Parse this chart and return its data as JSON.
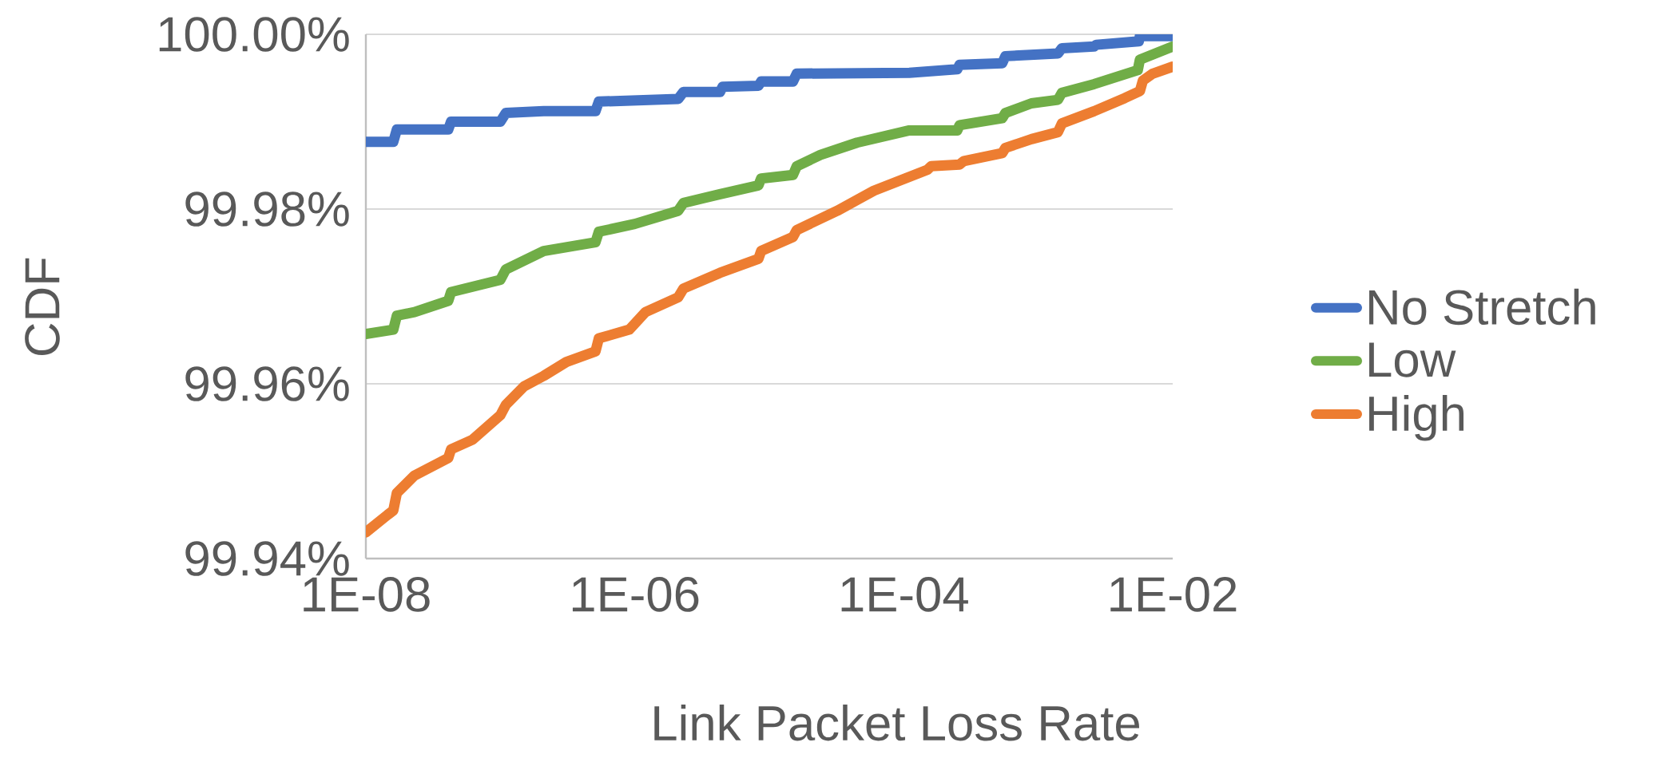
{
  "chart_data": {
    "type": "line",
    "xlabel": "Link Packet Loss Rate",
    "ylabel": "CDF",
    "log": "x",
    "grid": "y",
    "legend": "right",
    "xlim": [
      1e-08,
      0.01
    ],
    "ylim": [
      99.94,
      100.0
    ],
    "xticks": [
      {
        "value": 1e-08,
        "label": "1E-08"
      },
      {
        "value": 1e-06,
        "label": "1E-06"
      },
      {
        "value": 0.0001,
        "label": "1E-04"
      },
      {
        "value": 0.01,
        "label": "1E-02"
      }
    ],
    "yticks": [
      {
        "value": 99.94,
        "label": "99.94%"
      },
      {
        "value": 99.96,
        "label": "99.96%"
      },
      {
        "value": 99.98,
        "label": "99.98%"
      },
      {
        "value": 100.0,
        "label": "100.00%"
      }
    ],
    "series": [
      {
        "name": "No Stretch",
        "color": "#4472c4",
        "x": [
          1e-08,
          1.6e-08,
          1.7e-08,
          4.1e-08,
          4.3e-08,
          1e-07,
          1.1e-07,
          2.1e-07,
          5.1e-07,
          5.4e-07,
          2.1e-06,
          2.3e-06,
          4.3e-06,
          4.5e-06,
          8.3e-06,
          8.7e-06,
          1.5e-05,
          1.6e-05,
          0.00011,
          0.00025,
          0.00026,
          0.00054,
          0.00057,
          0.0014,
          0.0015,
          0.0026,
          0.0027,
          0.0056,
          0.0057,
          0.01
        ],
        "values": [
          99.9877,
          99.9877,
          99.9891,
          99.9891,
          99.99,
          99.99,
          99.991,
          99.9912,
          99.9912,
          99.9923,
          99.9926,
          99.9934,
          99.9934,
          99.994,
          99.9941,
          99.9946,
          99.9946,
          99.9955,
          99.9956,
          99.996,
          99.9965,
          99.9967,
          99.9975,
          99.9978,
          99.9984,
          99.9986,
          99.9988,
          99.9992,
          99.9998,
          99.9998
        ]
      },
      {
        "name": "Low",
        "color": "#70ad47",
        "x": [
          1e-08,
          1.6e-08,
          1.7e-08,
          2.3e-08,
          4.1e-08,
          4.3e-08,
          1e-07,
          1.1e-07,
          2.1e-07,
          5.1e-07,
          5.4e-07,
          1e-06,
          2.1e-06,
          2.3e-06,
          4.3e-06,
          8.3e-06,
          8.7e-06,
          1.5e-05,
          1.6e-05,
          2.4e-05,
          4.5e-05,
          0.00011,
          0.00025,
          0.00026,
          0.00054,
          0.00057,
          0.00089,
          0.0014,
          0.0015,
          0.0026,
          0.0055,
          0.0057,
          0.01
        ],
        "values": [
          99.9657,
          99.9662,
          99.9678,
          99.9682,
          99.9695,
          99.9705,
          99.9719,
          99.9731,
          99.9752,
          99.9762,
          99.9774,
          99.9783,
          99.9798,
          99.9807,
          99.9817,
          99.9827,
          99.9835,
          99.9839,
          99.9849,
          99.9862,
          99.9876,
          99.989,
          99.989,
          99.9896,
          99.9904,
          99.991,
          99.9921,
          99.9925,
          99.9933,
          99.9943,
          99.9959,
          99.9971,
          99.9986
        ]
      },
      {
        "name": "High",
        "color": "#ed7d31",
        "x": [
          1e-08,
          1.45e-08,
          1.6e-08,
          1.7e-08,
          2.3e-08,
          4.1e-08,
          4.3e-08,
          6.2e-08,
          1e-07,
          1.1e-07,
          1.5e-07,
          2.1e-07,
          3.1e-07,
          5.1e-07,
          5.4e-07,
          9.1e-07,
          1.2e-06,
          2.1e-06,
          2.3e-06,
          4.3e-06,
          8.3e-06,
          8.7e-06,
          1.5e-05,
          1.6e-05,
          3.2e-05,
          6e-05,
          0.00015,
          0.00016,
          0.00026,
          0.00028,
          0.00054,
          0.00057,
          0.00089,
          0.0014,
          0.0015,
          0.0026,
          0.0044,
          0.0057,
          0.006,
          0.0071,
          0.01
        ],
        "values": [
          99.943,
          99.945,
          99.9455,
          99.9475,
          99.9495,
          99.9515,
          99.9525,
          99.9536,
          99.9564,
          99.9576,
          99.9597,
          99.9609,
          99.9625,
          99.9637,
          99.9652,
          99.9662,
          99.9682,
          99.9699,
          99.9709,
          99.9727,
          99.9743,
          99.9752,
          99.9768,
          99.9776,
          99.9798,
          99.9821,
          99.9845,
          99.9849,
          99.9851,
          99.9855,
          99.9864,
          99.987,
          99.988,
          99.9888,
          99.9898,
          99.9912,
          99.9927,
          99.9935,
          99.9947,
          99.9955,
          99.9963
        ]
      }
    ]
  }
}
